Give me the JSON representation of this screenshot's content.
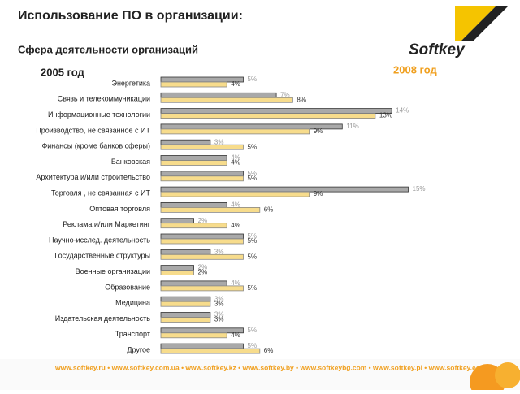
{
  "header": {
    "title": "Использование ПО в организации:",
    "subtitle": "Сфера деятельности организаций",
    "logo": "Softkey"
  },
  "chart_data": {
    "type": "bar",
    "orientation": "horizontal",
    "categories": [
      "Энергетика",
      "Связь и телекоммуникации",
      "Информационные технологии",
      "Производство, не связанное с ИТ",
      "Финансы (кроме банков сферы)",
      "Банковская",
      "Архитектура и/или строительство",
      "Торговля , не связанная с ИТ",
      "Оптовая торговля",
      "Реклама и/или Маркетинг",
      "Научно-исслед. деятельность",
      "Государственные структуры",
      "Военные организации",
      "Образование",
      "Медицина",
      "Издательская деятельность",
      "Транспорт",
      "Другое"
    ],
    "series": [
      {
        "name": "2005 год",
        "color": "#a9a9a9",
        "values": [
          5,
          7,
          14,
          11,
          3,
          4,
          5,
          15,
          4,
          2,
          5,
          3,
          2,
          4,
          3,
          3,
          5,
          5
        ],
        "value_labels": [
          "5%",
          "7%",
          "14%",
          "11%",
          "3%",
          "4%",
          "5%",
          "15%",
          "4%",
          "2%",
          "5%",
          "3%",
          "2%",
          "4%",
          "3%",
          "3%",
          "5%",
          "5%"
        ]
      },
      {
        "name": "2008 год",
        "color": "#f7dc8c",
        "values": [
          4,
          8,
          13,
          9,
          5,
          4,
          5,
          9,
          6,
          4,
          5,
          5,
          2,
          5,
          3,
          3,
          4,
          6
        ],
        "value_labels": [
          "4%",
          "8%",
          "13%",
          "9%",
          "5%",
          "4%",
          "5%",
          "9%",
          "6%",
          "4%",
          "5%",
          "5%",
          "2%",
          "5%",
          "3%",
          "3%",
          "4%",
          "6%"
        ]
      }
    ]
  },
  "footer": "www.softkey.ru • www.softkey.com.ua • www.softkey.kz • www.softkey.by • www.softkeybg.com • www.softkey.pl • www.softkey.ee"
}
